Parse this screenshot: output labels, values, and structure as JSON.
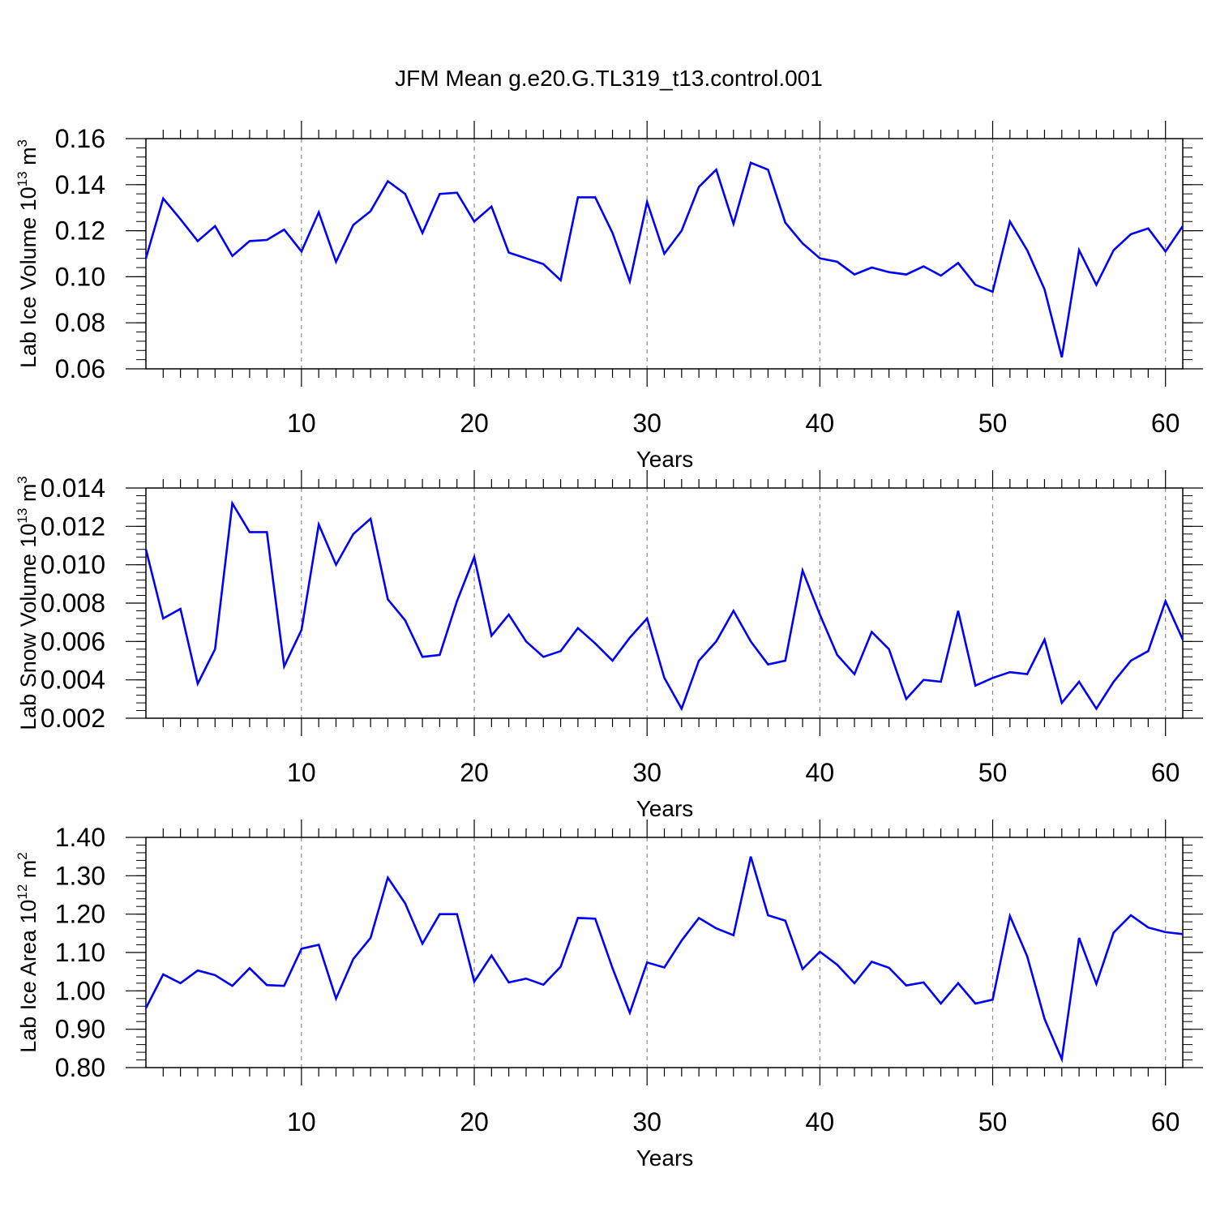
{
  "title": "JFM Mean g.e20.G.TL319_t13.control.001",
  "chart_data": [
    {
      "type": "line",
      "ylabel": "Lab Ice Volume 10",
      "ylabel_exponent": "13",
      "ylabel_unit": " m",
      "ylabel_unit_exponent": "3",
      "xlabel": "Years",
      "xlim": [
        1,
        61
      ],
      "ylim": [
        0.06,
        0.16
      ],
      "xticks": [
        10,
        20,
        30,
        40,
        50,
        60
      ],
      "yticks": [
        "0.06",
        "0.08",
        "0.10",
        "0.12",
        "0.14",
        "0.16"
      ],
      "ytick_values": [
        0.06,
        0.08,
        0.1,
        0.12,
        0.14,
        0.16
      ],
      "yminor_step": 0.004,
      "grid": "vertical dashed at major x ticks",
      "color": "#0000ff",
      "x": [
        1,
        2,
        3,
        4,
        5,
        6,
        7,
        8,
        9,
        10,
        11,
        12,
        13,
        14,
        15,
        16,
        17,
        18,
        19,
        20,
        21,
        22,
        23,
        24,
        25,
        26,
        27,
        28,
        29,
        30,
        31,
        32,
        33,
        34,
        35,
        36,
        37,
        38,
        39,
        40,
        41,
        42,
        43,
        44,
        45,
        46,
        47,
        48,
        49,
        50,
        51,
        52,
        53,
        54,
        55,
        56,
        57,
        58,
        59,
        60,
        61
      ],
      "y": [
        0.108,
        0.134,
        0.125,
        0.1155,
        0.122,
        0.109,
        0.1155,
        0.116,
        0.1205,
        0.111,
        0.128,
        0.1065,
        0.1225,
        0.1285,
        0.1415,
        0.136,
        0.119,
        0.136,
        0.1365,
        0.124,
        0.1305,
        0.1105,
        0.108,
        0.1055,
        0.0985,
        0.1345,
        0.1345,
        0.119,
        0.098,
        0.1325,
        0.11,
        0.12,
        0.139,
        0.1465,
        0.123,
        0.1495,
        0.1465,
        0.1235,
        0.1145,
        0.108,
        0.1065,
        0.101,
        0.104,
        0.102,
        0.101,
        0.1045,
        0.1005,
        0.106,
        0.0965,
        0.0935,
        0.124,
        0.1115,
        0.0945,
        0.065,
        0.1115,
        0.0965,
        0.1115,
        0.1185,
        0.121,
        0.111,
        0.122
      ]
    },
    {
      "type": "line",
      "ylabel": "Lab Snow Volume 10",
      "ylabel_exponent": "13",
      "ylabel_unit": " m",
      "ylabel_unit_exponent": "3",
      "xlabel": "Years",
      "xlim": [
        1,
        61
      ],
      "ylim": [
        0.002,
        0.014
      ],
      "xticks": [
        10,
        20,
        30,
        40,
        50,
        60
      ],
      "yticks": [
        "0.002",
        "0.004",
        "0.006",
        "0.008",
        "0.010",
        "0.012",
        "0.014"
      ],
      "ytick_values": [
        0.002,
        0.004,
        0.006,
        0.008,
        0.01,
        0.012,
        0.014
      ],
      "yminor_step": 0.0004,
      "grid": "vertical dashed at major x ticks",
      "color": "#0000ff",
      "x": [
        1,
        2,
        3,
        4,
        5,
        6,
        7,
        8,
        9,
        10,
        11,
        12,
        13,
        14,
        15,
        16,
        17,
        18,
        19,
        20,
        21,
        22,
        23,
        24,
        25,
        26,
        27,
        28,
        29,
        30,
        31,
        32,
        33,
        34,
        35,
        36,
        37,
        38,
        39,
        40,
        41,
        42,
        43,
        44,
        45,
        46,
        47,
        48,
        49,
        50,
        51,
        52,
        53,
        54,
        55,
        56,
        57,
        58,
        59,
        60,
        61
      ],
      "y": [
        0.0108,
        0.0072,
        0.0077,
        0.0038,
        0.0056,
        0.0132,
        0.0117,
        0.0117,
        0.0047,
        0.0066,
        0.0121,
        0.01,
        0.0116,
        0.0124,
        0.0082,
        0.0071,
        0.0052,
        0.0053,
        0.0081,
        0.0104,
        0.0063,
        0.0074,
        0.006,
        0.0052,
        0.0055,
        0.0067,
        0.0059,
        0.005,
        0.0062,
        0.0072,
        0.0041,
        0.0025,
        0.005,
        0.006,
        0.0076,
        0.006,
        0.0048,
        0.005,
        0.0097,
        0.0074,
        0.0053,
        0.0043,
        0.0065,
        0.0056,
        0.003,
        0.004,
        0.0039,
        0.0076,
        0.0037,
        0.0041,
        0.0044,
        0.0043,
        0.0061,
        0.0028,
        0.0039,
        0.0025,
        0.0039,
        0.005,
        0.0055,
        0.0081,
        0.0061
      ]
    },
    {
      "type": "line",
      "ylabel": "Lab Ice Area 10",
      "ylabel_exponent": "12",
      "ylabel_unit": " m",
      "ylabel_unit_exponent": "2",
      "xlabel": "Years",
      "xlim": [
        1,
        61
      ],
      "ylim": [
        0.8,
        1.4
      ],
      "xticks": [
        10,
        20,
        30,
        40,
        50,
        60
      ],
      "yticks": [
        "0.80",
        "0.90",
        "1.00",
        "1.10",
        "1.20",
        "1.30",
        "1.40"
      ],
      "ytick_values": [
        0.8,
        0.9,
        1.0,
        1.1,
        1.2,
        1.3,
        1.4
      ],
      "yminor_step": 0.02,
      "grid": "vertical dashed at major x ticks",
      "color": "#0000ff",
      "x": [
        1,
        2,
        3,
        4,
        5,
        6,
        7,
        8,
        9,
        10,
        11,
        12,
        13,
        14,
        15,
        16,
        17,
        18,
        19,
        20,
        21,
        22,
        23,
        24,
        25,
        26,
        27,
        28,
        29,
        30,
        31,
        32,
        33,
        34,
        35,
        36,
        37,
        38,
        39,
        40,
        41,
        42,
        43,
        44,
        45,
        46,
        47,
        48,
        49,
        50,
        51,
        52,
        53,
        54,
        55,
        56,
        57,
        58,
        59,
        60,
        61
      ],
      "y": [
        0.955,
        1.043,
        1.02,
        1.053,
        1.041,
        1.013,
        1.059,
        1.015,
        1.013,
        1.11,
        1.12,
        0.98,
        1.083,
        1.138,
        1.295,
        1.228,
        1.123,
        1.2,
        1.2,
        1.024,
        1.092,
        1.022,
        1.032,
        1.016,
        1.063,
        1.19,
        1.188,
        1.059,
        0.943,
        1.074,
        1.061,
        1.131,
        1.19,
        1.163,
        1.145,
        1.35,
        1.197,
        1.183,
        1.057,
        1.102,
        1.068,
        1.02,
        1.076,
        1.06,
        1.014,
        1.022,
        0.967,
        1.02,
        0.967,
        0.977,
        1.195,
        1.09,
        0.927,
        0.822,
        1.138,
        1.018,
        1.152,
        1.197,
        1.165,
        1.153,
        1.148
      ]
    }
  ]
}
